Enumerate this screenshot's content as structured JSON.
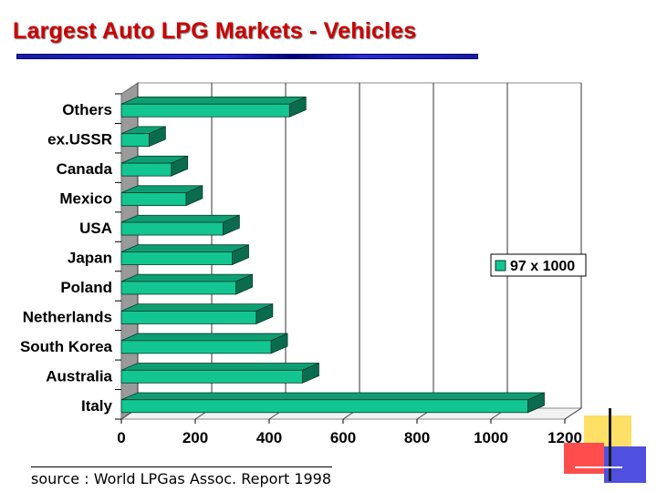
{
  "slide": {
    "title": "Largest Auto LPG Markets - Vehicles",
    "source": "source : World LPGas Assoc. Report 1998",
    "colors": {
      "title": "#cc0000",
      "bar_front": "#13c591",
      "bar_top": "#0f9e73",
      "bar_side": "#0a6b4d",
      "title_rule": "#2b2bd6"
    }
  },
  "chart_data": {
    "type": "bar",
    "orientation": "horizontal",
    "categories": [
      "Others",
      "ex.USSR",
      "Canada",
      "Mexico",
      "USA",
      "Japan",
      "Poland",
      "Netherlands",
      "South Korea",
      "Australia",
      "Italy"
    ],
    "series": [
      {
        "name": "97 x 1000",
        "values": [
          455,
          75,
          135,
          175,
          275,
          300,
          310,
          365,
          405,
          490,
          1100
        ]
      }
    ],
    "xlim": [
      0,
      1200
    ],
    "xticks": [
      "0",
      "200",
      "400",
      "600",
      "800",
      "1000",
      "1200"
    ],
    "grid": true,
    "legend_position": "right"
  }
}
